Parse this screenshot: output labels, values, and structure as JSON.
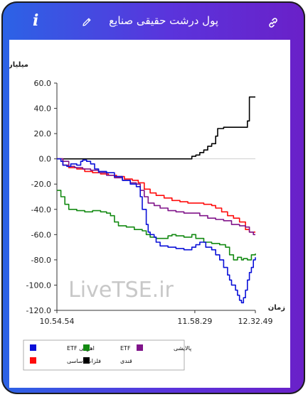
{
  "header": {
    "title": "پول درشت حقیقی صنایع",
    "info_label": "i",
    "edit_icon": "pencil-icon",
    "link_icon": "link-icon"
  },
  "watermark": "LiveTSE.ir",
  "chart_data": {
    "type": "line",
    "ylabel": "میلیارد تومان",
    "xlabel": "زمان",
    "ylim": [
      -120,
      60
    ],
    "yticks": [
      "60.0",
      "40.0",
      "20.0",
      "0.0",
      "-20.0",
      "-40.0",
      "-60.0",
      "-80.0",
      "-100.0",
      "-120.0"
    ],
    "ytick_values": [
      60,
      40,
      20,
      0,
      -20,
      -40,
      -60,
      -80,
      -100,
      -120
    ],
    "xticks": [
      "10.54.54",
      "11.58.29",
      "12.32.49"
    ],
    "xtick_values": [
      0,
      0.695,
      1
    ],
    "xlim": [
      0,
      1
    ],
    "series": [
      {
        "name": "اهرمی ETF",
        "color": "#0a10d8",
        "points": [
          [
            0,
            0
          ],
          [
            0.02,
            -2
          ],
          [
            0.03,
            -5
          ],
          [
            0.05,
            -6
          ],
          [
            0.07,
            -4
          ],
          [
            0.1,
            -5
          ],
          [
            0.12,
            -2
          ],
          [
            0.13,
            -1
          ],
          [
            0.15,
            -2
          ],
          [
            0.17,
            -4
          ],
          [
            0.19,
            -8
          ],
          [
            0.21,
            -10
          ],
          [
            0.25,
            -11
          ],
          [
            0.29,
            -14
          ],
          [
            0.33,
            -17
          ],
          [
            0.37,
            -20
          ],
          [
            0.4,
            -22
          ],
          [
            0.42,
            -30
          ],
          [
            0.43,
            -40
          ],
          [
            0.45,
            -52
          ],
          [
            0.46,
            -58
          ],
          [
            0.47,
            -60
          ],
          [
            0.49,
            -62
          ],
          [
            0.5,
            -66
          ],
          [
            0.52,
            -69
          ],
          [
            0.56,
            -70
          ],
          [
            0.6,
            -71
          ],
          [
            0.64,
            -72
          ],
          [
            0.68,
            -70
          ],
          [
            0.7,
            -68
          ],
          [
            0.72,
            -66
          ],
          [
            0.75,
            -70
          ],
          [
            0.78,
            -72
          ],
          [
            0.8,
            -76
          ],
          [
            0.82,
            -80
          ],
          [
            0.84,
            -86
          ],
          [
            0.86,
            -92
          ],
          [
            0.87,
            -96
          ],
          [
            0.88,
            -100
          ],
          [
            0.9,
            -104
          ],
          [
            0.91,
            -108
          ],
          [
            0.92,
            -112
          ],
          [
            0.93,
            -114
          ],
          [
            0.94,
            -110
          ],
          [
            0.95,
            -104
          ],
          [
            0.96,
            -96
          ],
          [
            0.97,
            -90
          ],
          [
            0.98,
            -86
          ],
          [
            0.99,
            -80
          ],
          [
            1,
            -78
          ]
        ]
      },
      {
        "name": "ETF",
        "color": "#138a12",
        "points": [
          [
            0,
            -25
          ],
          [
            0.02,
            -30
          ],
          [
            0.04,
            -36
          ],
          [
            0.06,
            -40
          ],
          [
            0.1,
            -41
          ],
          [
            0.14,
            -42
          ],
          [
            0.18,
            -41
          ],
          [
            0.22,
            -42
          ],
          [
            0.25,
            -43
          ],
          [
            0.27,
            -45
          ],
          [
            0.29,
            -50
          ],
          [
            0.31,
            -53
          ],
          [
            0.35,
            -54
          ],
          [
            0.39,
            -56
          ],
          [
            0.43,
            -57
          ],
          [
            0.45,
            -60
          ],
          [
            0.47,
            -62
          ],
          [
            0.5,
            -63
          ],
          [
            0.54,
            -63
          ],
          [
            0.56,
            -61
          ],
          [
            0.58,
            -60
          ],
          [
            0.6,
            -61
          ],
          [
            0.64,
            -62
          ],
          [
            0.68,
            -60
          ],
          [
            0.7,
            -63
          ],
          [
            0.74,
            -66
          ],
          [
            0.78,
            -67
          ],
          [
            0.82,
            -68
          ],
          [
            0.85,
            -70
          ],
          [
            0.87,
            -76
          ],
          [
            0.89,
            -80
          ],
          [
            0.91,
            -78
          ],
          [
            0.93,
            -80
          ],
          [
            0.94,
            -79
          ],
          [
            0.96,
            -80
          ],
          [
            0.98,
            -76
          ],
          [
            1,
            -75
          ]
        ]
      },
      {
        "name": "پالایشی",
        "color": "#80148a",
        "points": [
          [
            0,
            0
          ],
          [
            0.03,
            -2
          ],
          [
            0.06,
            -6
          ],
          [
            0.09,
            -7
          ],
          [
            0.13,
            -8
          ],
          [
            0.17,
            -9
          ],
          [
            0.21,
            -11
          ],
          [
            0.25,
            -13
          ],
          [
            0.29,
            -15
          ],
          [
            0.33,
            -17
          ],
          [
            0.37,
            -19
          ],
          [
            0.4,
            -20
          ],
          [
            0.42,
            -25
          ],
          [
            0.44,
            -30
          ],
          [
            0.46,
            -35
          ],
          [
            0.49,
            -37
          ],
          [
            0.52,
            -39
          ],
          [
            0.56,
            -41
          ],
          [
            0.6,
            -42
          ],
          [
            0.64,
            -43
          ],
          [
            0.68,
            -43
          ],
          [
            0.72,
            -45
          ],
          [
            0.76,
            -47
          ],
          [
            0.8,
            -48
          ],
          [
            0.84,
            -49
          ],
          [
            0.88,
            -52
          ],
          [
            0.92,
            -53
          ],
          [
            0.95,
            -54
          ],
          [
            0.97,
            -58
          ],
          [
            0.99,
            -60
          ],
          [
            1,
            -60
          ]
        ]
      },
      {
        "name": "فلزات اساسی",
        "color": "#ff0c0c",
        "points": [
          [
            0,
            0
          ],
          [
            0.03,
            -5
          ],
          [
            0.06,
            -7
          ],
          [
            0.1,
            -8
          ],
          [
            0.14,
            -10
          ],
          [
            0.18,
            -11
          ],
          [
            0.22,
            -12
          ],
          [
            0.26,
            -13
          ],
          [
            0.3,
            -14
          ],
          [
            0.34,
            -16
          ],
          [
            0.38,
            -17
          ],
          [
            0.41,
            -19
          ],
          [
            0.44,
            -24
          ],
          [
            0.47,
            -27
          ],
          [
            0.5,
            -29
          ],
          [
            0.54,
            -31
          ],
          [
            0.58,
            -33
          ],
          [
            0.62,
            -34
          ],
          [
            0.66,
            -35
          ],
          [
            0.7,
            -35
          ],
          [
            0.74,
            -36
          ],
          [
            0.78,
            -37
          ],
          [
            0.8,
            -39
          ],
          [
            0.83,
            -42
          ],
          [
            0.86,
            -45
          ],
          [
            0.89,
            -47
          ],
          [
            0.92,
            -50
          ],
          [
            0.95,
            -56
          ],
          [
            0.97,
            -58
          ],
          [
            1,
            -58
          ]
        ]
      },
      {
        "name": "قندی",
        "color": "#000000",
        "points": [
          [
            0,
            0
          ],
          [
            0.66,
            0
          ],
          [
            0.68,
            2
          ],
          [
            0.7,
            3
          ],
          [
            0.72,
            5
          ],
          [
            0.74,
            7
          ],
          [
            0.76,
            10
          ],
          [
            0.78,
            12
          ],
          [
            0.8,
            18
          ],
          [
            0.81,
            24
          ],
          [
            0.84,
            25
          ],
          [
            0.9,
            25
          ],
          [
            0.94,
            25
          ],
          [
            0.96,
            30
          ],
          [
            0.97,
            49
          ],
          [
            1,
            49
          ]
        ]
      }
    ],
    "grid": false,
    "legend": "bottom-left"
  },
  "legend": {
    "items": [
      {
        "label": "اهرمی ETF",
        "color": "#0a10d8"
      },
      {
        "label": "ETF",
        "color": "#138a12"
      },
      {
        "label": "پالایشی",
        "color": "#80148a"
      },
      {
        "label": "فلزات اساسی",
        "color": "#ff0c0c"
      },
      {
        "label": "قندی",
        "color": "#000000"
      }
    ]
  }
}
